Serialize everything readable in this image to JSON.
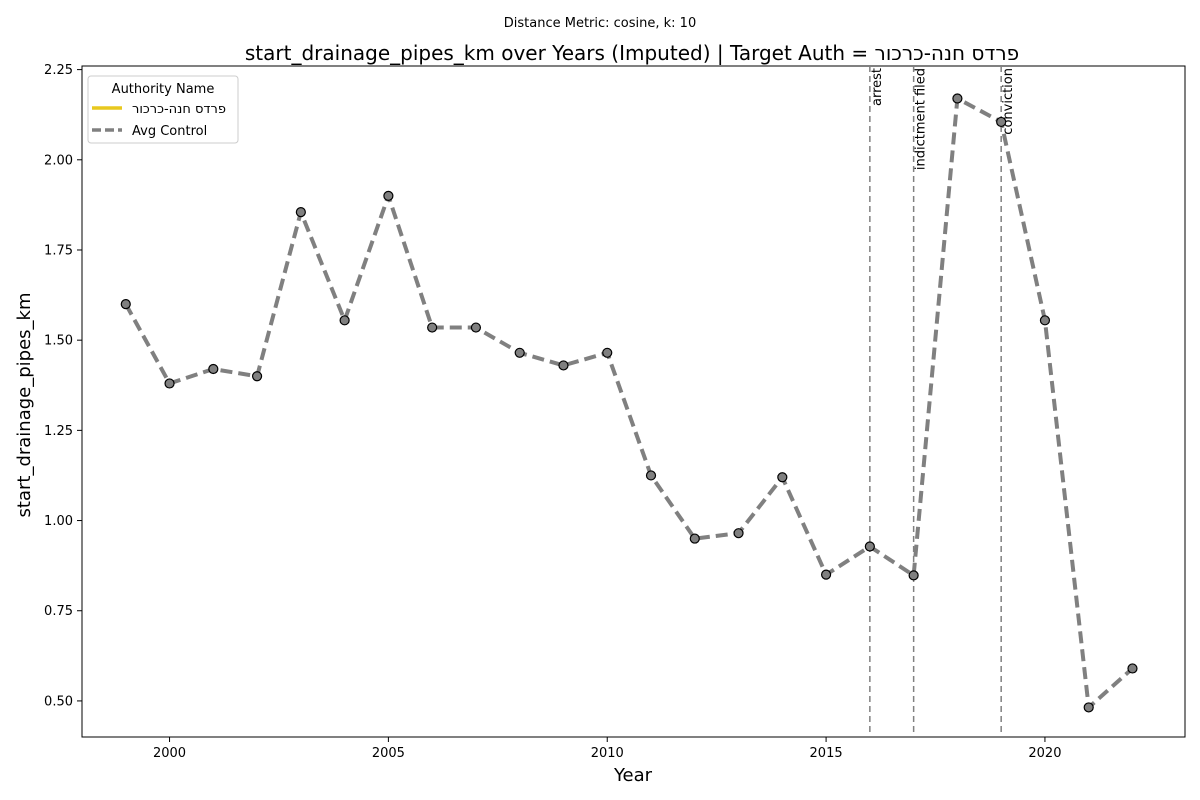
{
  "chart_data": {
    "type": "line",
    "subtitle": "Distance Metric: cosine, k: 10",
    "title": "start_drainage_pipes_km over Years (Imputed) | Target Auth = פרדס חנה-כרכור",
    "xlabel": "Year",
    "ylabel": "start_drainage_pipes_km",
    "xlim": [
      1998,
      2023.2
    ],
    "ylim": [
      0.4,
      2.26
    ],
    "xticks": [
      2000,
      2005,
      2010,
      2015,
      2020
    ],
    "yticks": [
      0.5,
      0.75,
      1.0,
      1.25,
      1.5,
      1.75,
      2.0,
      2.25
    ],
    "ytick_labels": [
      "0.50",
      "0.75",
      "1.00",
      "1.25",
      "1.50",
      "1.75",
      "2.00",
      "2.25"
    ],
    "grid": false,
    "legend": {
      "title": "Authority Name",
      "placement": "top-left",
      "entries": [
        {
          "label": "פרדס חנה-כרכור",
          "color": "#e8c81e",
          "style": "solid"
        },
        {
          "label": "Avg Control",
          "color": "#808080",
          "style": "dashed"
        }
      ]
    },
    "series": [
      {
        "name": "Avg Control",
        "color": "#808080",
        "style": "dashed",
        "marker": "circle",
        "x": [
          1999,
          2000,
          2001,
          2002,
          2003,
          2004,
          2005,
          2006,
          2007,
          2008,
          2009,
          2010,
          2011,
          2012,
          2013,
          2014,
          2015,
          2016,
          2017,
          2018,
          2019,
          2020,
          2021,
          2022
        ],
        "y": [
          1.6,
          1.38,
          1.42,
          1.4,
          1.855,
          1.555,
          1.9,
          1.535,
          1.535,
          1.465,
          1.43,
          1.465,
          1.125,
          0.95,
          0.965,
          1.12,
          0.85,
          0.928,
          0.848,
          2.17,
          2.105,
          1.555,
          0.482,
          0.59
        ]
      },
      {
        "name": "פרדס חנה-כרכור",
        "color": "#e8c81e",
        "style": "solid",
        "x": [],
        "y": []
      }
    ],
    "events": [
      {
        "x": 2016,
        "label": "arrest"
      },
      {
        "x": 2017,
        "label": "indictment filed"
      },
      {
        "x": 2019,
        "label": "conviction"
      }
    ]
  }
}
